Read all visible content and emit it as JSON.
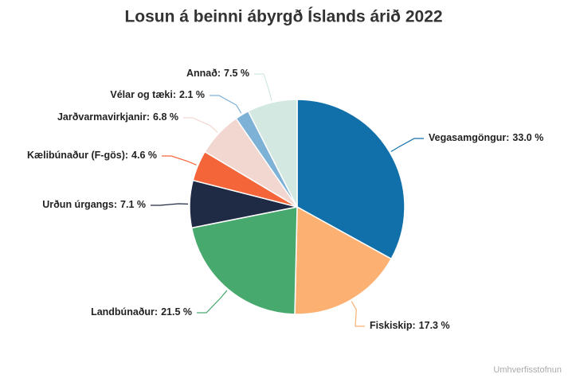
{
  "chart_data": {
    "type": "pie",
    "title": "Losun á beinni ábyrgð Íslands árið 2022",
    "categories": [
      "Vegasamgöngur:",
      "Fiskiskip:",
      "Landbúnaður:",
      "Urðun úrgangs:",
      "Kælibúnaður (F-gös):",
      "Jarðvarmavirkjanir:",
      "Vélar og tæki:",
      "Annað:"
    ],
    "values": [
      33.0,
      17.3,
      21.5,
      7.1,
      4.6,
      6.8,
      2.1,
      7.5
    ],
    "value_labels": [
      "33.0 %",
      "17.3 %",
      "21.5 %",
      "7.1 %",
      "4.6 %",
      "6.8 %",
      "2.1 %",
      "7.5 %"
    ],
    "colors": [
      "#1170aa",
      "#fcb072",
      "#48a96e",
      "#1f2b44",
      "#f4653a",
      "#f2d6d0",
      "#7eb1d6",
      "#d2e8e0"
    ],
    "source": "Umhverfisstofnun"
  }
}
